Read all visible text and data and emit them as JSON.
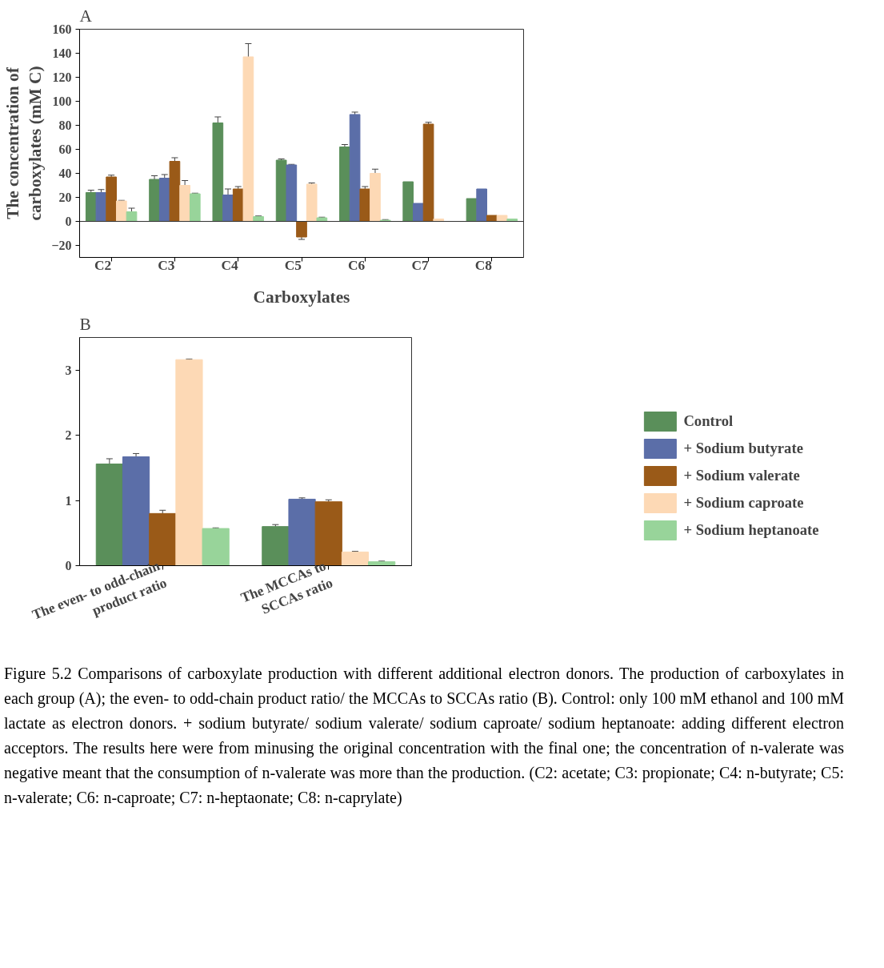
{
  "chart_data": [
    {
      "type": "bar",
      "title": "A",
      "xlabel": "Carboxylates",
      "ylabel": "The concentration of carboxylates (mM C)",
      "categories": [
        "C2",
        "C3",
        "C4",
        "C5",
        "C6",
        "C7",
        "C8"
      ],
      "ylim": [
        -30,
        160
      ],
      "yticks": [
        -20,
        0,
        20,
        40,
        60,
        80,
        100,
        120,
        140,
        160
      ],
      "grid": false,
      "legend": false,
      "ref_lines": [
        {
          "axis": "y",
          "value": 0,
          "color": "#333333"
        }
      ],
      "series": [
        {
          "color": "#5a8f5a",
          "values": [
            24,
            35,
            82,
            51,
            62,
            33,
            19
          ],
          "errors": [
            2,
            3,
            5,
            1,
            2,
            null,
            null
          ]
        },
        {
          "color": "#5b6ea8",
          "values": [
            24,
            36,
            22,
            47,
            89,
            15,
            27
          ],
          "errors": [
            2.5,
            3,
            5,
            0.5,
            2,
            null,
            null
          ]
        },
        {
          "color": "#9a5a18",
          "values": [
            37,
            50,
            27,
            -13,
            27,
            81,
            5
          ],
          "errors": [
            1.5,
            3,
            2,
            2,
            2,
            1.5,
            null
          ]
        },
        {
          "color": "#fdd9b5",
          "values": [
            17,
            30,
            137,
            31,
            40,
            2,
            5
          ],
          "errors": [
            0.5,
            4,
            11,
            1,
            3.5,
            null,
            null
          ]
        },
        {
          "color": "#98d49a",
          "values": [
            8,
            23,
            4,
            3,
            1,
            0,
            2
          ],
          "errors": [
            3,
            0.5,
            0.5,
            0.5,
            0.5,
            null,
            null
          ]
        }
      ]
    },
    {
      "type": "bar",
      "title": "B",
      "categories": [
        "The even- to odd-chain product ratio",
        "The MCCAs to SCCAs ratio"
      ],
      "ylim": [
        0,
        3.5
      ],
      "yticks": [
        0,
        1,
        2,
        3
      ],
      "grid": false,
      "legend": "right",
      "series": [
        {
          "name": "Control",
          "color": "#5a8f5a",
          "values": [
            1.56,
            0.6
          ],
          "errors": [
            0.08,
            0.03
          ]
        },
        {
          "name": "+ Sodium butyrate",
          "color": "#5b6ea8",
          "values": [
            1.67,
            1.02
          ],
          "errors": [
            0.05,
            0.02
          ]
        },
        {
          "name": "+ Sodium valerate",
          "color": "#9a5a18",
          "values": [
            0.8,
            0.98
          ],
          "errors": [
            0.05,
            0.03
          ]
        },
        {
          "name": "+ Sodium caproate",
          "color": "#fdd9b5",
          "values": [
            3.16,
            0.21
          ],
          "errors": [
            0.01,
            0.01
          ]
        },
        {
          "name": "+ Sodium heptanoate",
          "color": "#98d49a",
          "values": [
            0.57,
            0.06
          ],
          "errors": [
            0.01,
            0.01
          ]
        }
      ],
      "annotations": [
        "Figure 5.2 Comparisons of carboxylate production with different additional electron donors. The production of carboxylates in each group (A); the even- to odd-chain product ratio/ the MCCAs to SCCAs ratio (B). Control: only 100 mM ethanol and 100 mM lactate as electron donors. + sodium butyrate/ sodium valerate/ sodium caproate/ sodium heptanoate: adding different electron acceptors. The results here were from minusing the original concentration with the final one; the concentration of n-valerate was negative meant that the consumption of n-valerate was more than the production. (C2: acetate; C3: propionate; C4: n-butyrate; C5: n-valerate; C6: n-caproate; C7: n-heptaonate; C8: n-caprylate)"
      ]
    }
  ]
}
